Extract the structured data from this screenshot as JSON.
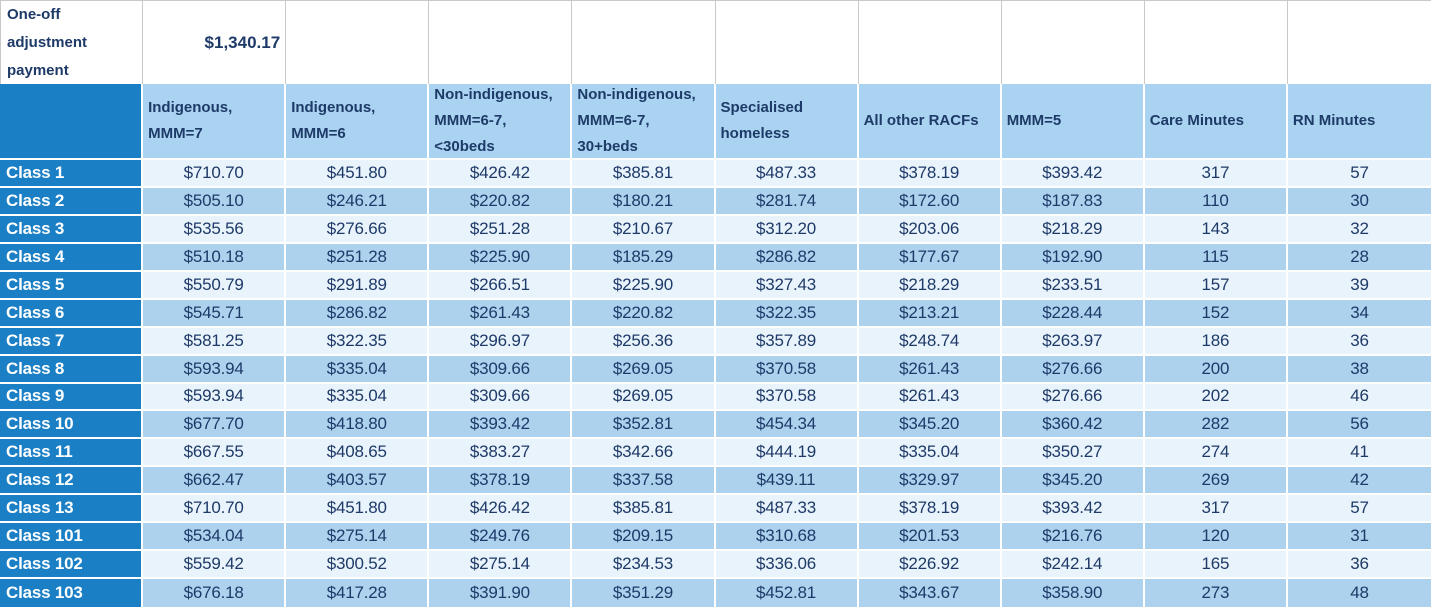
{
  "colors": {
    "navy_text": "#1E3A68",
    "medium_blue": "#1A7FC4",
    "header_bg": "#A9D3F0",
    "band_light": "#E9F3FB",
    "band_dark": "#ACD2EE",
    "gridline": "#C9C9C9"
  },
  "one_off": {
    "label": "One-off adjustment payment",
    "amount": "$1,340.17"
  },
  "table": {
    "columns": [
      "Indigenous, MMM=7",
      "Indigenous, MMM=6",
      "Non-indigenous, MMM=6-7, <30beds",
      "Non-indigenous, MMM=6-7, 30+beds",
      "Specialised homeless",
      "All other RACFs",
      "MMM=5",
      "Care Minutes",
      "RN Minutes"
    ],
    "rows": [
      {
        "label": "Class 1",
        "values": [
          "$710.70",
          "$451.80",
          "$426.42",
          "$385.81",
          "$487.33",
          "$378.19",
          "$393.42",
          "317",
          "57"
        ]
      },
      {
        "label": "Class 2",
        "values": [
          "$505.10",
          "$246.21",
          "$220.82",
          "$180.21",
          "$281.74",
          "$172.60",
          "$187.83",
          "110",
          "30"
        ]
      },
      {
        "label": "Class 3",
        "values": [
          "$535.56",
          "$276.66",
          "$251.28",
          "$210.67",
          "$312.20",
          "$203.06",
          "$218.29",
          "143",
          "32"
        ]
      },
      {
        "label": "Class 4",
        "values": [
          "$510.18",
          "$251.28",
          "$225.90",
          "$185.29",
          "$286.82",
          "$177.67",
          "$192.90",
          "115",
          "28"
        ]
      },
      {
        "label": "Class 5",
        "values": [
          "$550.79",
          "$291.89",
          "$266.51",
          "$225.90",
          "$327.43",
          "$218.29",
          "$233.51",
          "157",
          "39"
        ]
      },
      {
        "label": "Class 6",
        "values": [
          "$545.71",
          "$286.82",
          "$261.43",
          "$220.82",
          "$322.35",
          "$213.21",
          "$228.44",
          "152",
          "34"
        ]
      },
      {
        "label": "Class 7",
        "values": [
          "$581.25",
          "$322.35",
          "$296.97",
          "$256.36",
          "$357.89",
          "$248.74",
          "$263.97",
          "186",
          "36"
        ]
      },
      {
        "label": "Class 8",
        "values": [
          "$593.94",
          "$335.04",
          "$309.66",
          "$269.05",
          "$370.58",
          "$261.43",
          "$276.66",
          "200",
          "38"
        ]
      },
      {
        "label": "Class 9",
        "values": [
          "$593.94",
          "$335.04",
          "$309.66",
          "$269.05",
          "$370.58",
          "$261.43",
          "$276.66",
          "202",
          "46"
        ]
      },
      {
        "label": "Class 10",
        "values": [
          "$677.70",
          "$418.80",
          "$393.42",
          "$352.81",
          "$454.34",
          "$345.20",
          "$360.42",
          "282",
          "56"
        ]
      },
      {
        "label": "Class 11",
        "values": [
          "$667.55",
          "$408.65",
          "$383.27",
          "$342.66",
          "$444.19",
          "$335.04",
          "$350.27",
          "274",
          "41"
        ]
      },
      {
        "label": "Class 12",
        "values": [
          "$662.47",
          "$403.57",
          "$378.19",
          "$337.58",
          "$439.11",
          "$329.97",
          "$345.20",
          "269",
          "42"
        ]
      },
      {
        "label": "Class 13",
        "values": [
          "$710.70",
          "$451.80",
          "$426.42",
          "$385.81",
          "$487.33",
          "$378.19",
          "$393.42",
          "317",
          "57"
        ]
      },
      {
        "label": "Class 101",
        "values": [
          "$534.04",
          "$275.14",
          "$249.76",
          "$209.15",
          "$310.68",
          "$201.53",
          "$216.76",
          "120",
          "31"
        ]
      },
      {
        "label": "Class 102",
        "values": [
          "$559.42",
          "$300.52",
          "$275.14",
          "$234.53",
          "$336.06",
          "$226.92",
          "$242.14",
          "165",
          "36"
        ]
      },
      {
        "label": "Class 103",
        "values": [
          "$676.18",
          "$417.28",
          "$391.90",
          "$351.29",
          "$452.81",
          "$343.67",
          "$358.90",
          "273",
          "48"
        ]
      }
    ]
  }
}
